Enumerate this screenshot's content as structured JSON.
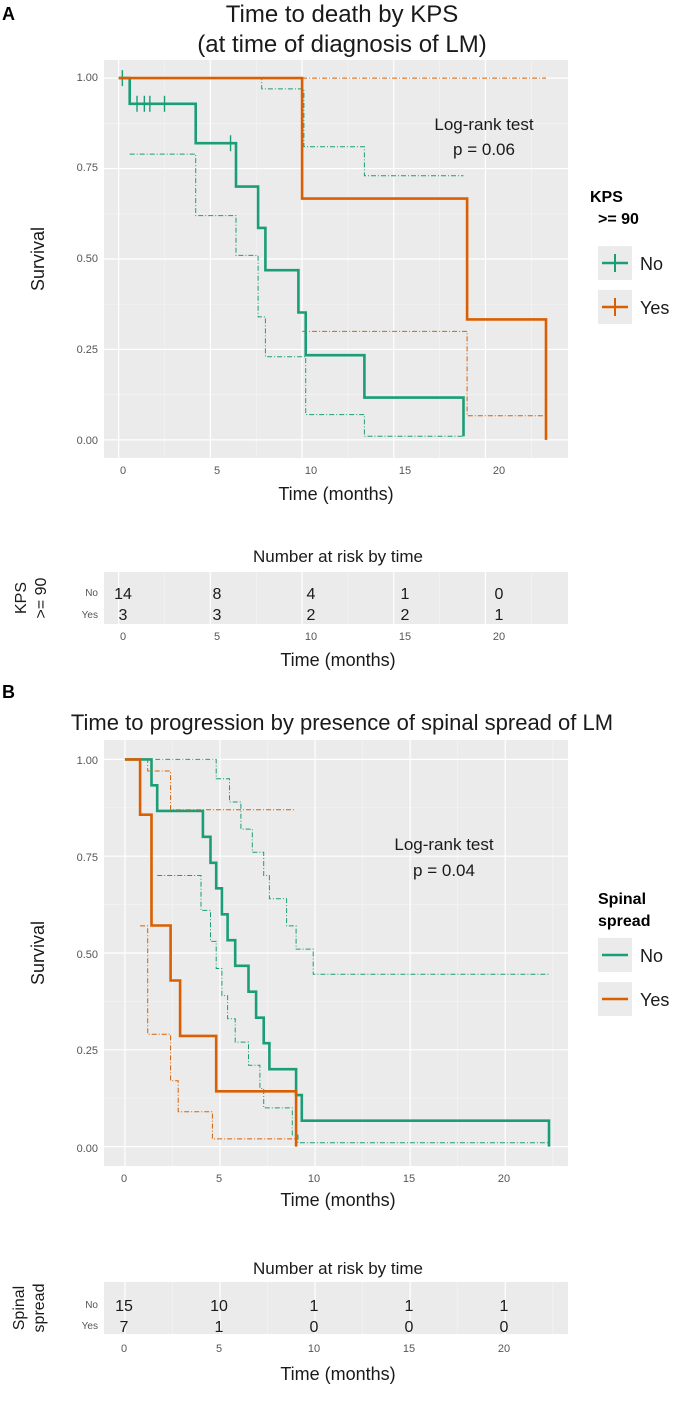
{
  "colors": {
    "no": "#1b9e77",
    "yes": "#d95f02",
    "panel_bg": "#ebebeb",
    "grid": "#ffffff"
  },
  "chart_data": [
    {
      "type": "line",
      "panel_label": "A",
      "title_lines": [
        "Time to death by KPS",
        "(at time of diagnosis of LM)"
      ],
      "xlabel": "Time (months)",
      "ylabel": "Survival",
      "xlim": [
        -0.8,
        24.5
      ],
      "ylim": [
        -0.05,
        1.05
      ],
      "xticks": [
        "0",
        "5",
        "10",
        "15",
        "20"
      ],
      "yticks": [
        "0.00",
        "0.25",
        "0.50",
        "0.75",
        "1.00"
      ],
      "annotation": [
        "Log-rank test",
        "p = 0.06"
      ],
      "legend": {
        "title_lines": [
          "KPS",
          ">= 90"
        ],
        "position": "right",
        "entries": [
          "No",
          "Yes"
        ]
      },
      "series": [
        {
          "name": "No",
          "estimate": [
            [
              0,
              1
            ],
            [
              0.6,
              1
            ],
            [
              0.6,
              0.929
            ],
            [
              4.2,
              0.929
            ],
            [
              4.2,
              0.82
            ],
            [
              6.4,
              0.82
            ],
            [
              6.4,
              0.7
            ],
            [
              7.6,
              0.7
            ],
            [
              7.6,
              0.586
            ],
            [
              8,
              0.586
            ],
            [
              8,
              0.469
            ],
            [
              9.8,
              0.469
            ],
            [
              9.8,
              0.352
            ],
            [
              10.2,
              0.352
            ],
            [
              10.2,
              0.234
            ],
            [
              13.4,
              0.234
            ],
            [
              13.4,
              0.117
            ],
            [
              18.8,
              0.117
            ],
            [
              18.8,
              0.01
            ]
          ],
          "upper": [
            [
              0,
              1
            ],
            [
              4.2,
              1
            ],
            [
              4.2,
              1
            ],
            [
              7.6,
              1
            ],
            [
              7.6,
              1
            ],
            [
              7.8,
              1
            ],
            [
              7.8,
              0.97
            ],
            [
              10.1,
              0.97
            ],
            [
              10.1,
              0.81
            ],
            [
              13.4,
              0.81
            ],
            [
              13.4,
              0.73
            ],
            [
              18.8,
              0.73
            ]
          ],
          "lower": [
            [
              0.6,
              0.79
            ],
            [
              4.2,
              0.79
            ],
            [
              4.2,
              0.62
            ],
            [
              6.4,
              0.62
            ],
            [
              6.4,
              0.51
            ],
            [
              7.6,
              0.51
            ],
            [
              7.6,
              0.34
            ],
            [
              8,
              0.34
            ],
            [
              8,
              0.23
            ],
            [
              10.2,
              0.23
            ],
            [
              10.2,
              0.07
            ],
            [
              13.4,
              0.07
            ],
            [
              13.4,
              0.01
            ],
            [
              18.8,
              0.01
            ]
          ],
          "censor_times": [
            [
              0.2,
              1
            ],
            [
              1,
              0.929
            ],
            [
              1.4,
              0.929
            ],
            [
              1.7,
              0.929
            ],
            [
              2.5,
              0.929
            ],
            [
              6.1,
              0.82
            ]
          ]
        },
        {
          "name": "Yes",
          "estimate": [
            [
              0,
              1
            ],
            [
              10,
              1
            ],
            [
              10,
              0.667
            ],
            [
              19,
              0.667
            ],
            [
              19,
              0.333
            ],
            [
              23.3,
              0.333
            ],
            [
              23.3,
              0.0
            ]
          ],
          "upper": [
            [
              10,
              1
            ],
            [
              23.3,
              1
            ]
          ],
          "lower": [
            [
              10,
              0.3
            ],
            [
              19,
              0.3
            ],
            [
              19,
              0.067
            ],
            [
              23.3,
              0.067
            ],
            [
              23.3,
              0.0
            ]
          ]
        }
      ],
      "risk_table": {
        "title": "Number at risk by time",
        "ylabel": "KPS >= 90",
        "ylabel_lines": [
          "KPS",
          ">= 90"
        ],
        "row_labels": [
          "No",
          "Yes"
        ],
        "times": [
          "0",
          "5",
          "10",
          "15",
          "20"
        ],
        "rows": [
          [
            "14",
            "8",
            "4",
            "1",
            "0"
          ],
          [
            "3",
            "3",
            "2",
            "2",
            "1"
          ]
        ],
        "xlabel": "Time (months)"
      }
    },
    {
      "type": "line",
      "panel_label": "B",
      "title_lines": [
        "Time to progression by presence of spinal spread of LM"
      ],
      "xlabel": "Time (months)",
      "ylabel": "Survival",
      "xlim": [
        -1.1,
        23.3
      ],
      "ylim": [
        -0.05,
        1.05
      ],
      "xticks": [
        "0",
        "5",
        "10",
        "15",
        "20"
      ],
      "yticks": [
        "0.00",
        "0.25",
        "0.50",
        "0.75",
        "1.00"
      ],
      "annotation": [
        "Log-rank test",
        "p = 0.04"
      ],
      "legend": {
        "title_lines": [
          "Spinal",
          "spread"
        ],
        "position": "right",
        "entries": [
          "No",
          "Yes"
        ]
      },
      "series": [
        {
          "name": "No",
          "estimate": [
            [
              0,
              1
            ],
            [
              1.4,
              1
            ],
            [
              1.4,
              0.933
            ],
            [
              1.7,
              0.933
            ],
            [
              1.7,
              0.867
            ],
            [
              4.1,
              0.867
            ],
            [
              4.1,
              0.8
            ],
            [
              4.5,
              0.8
            ],
            [
              4.5,
              0.733
            ],
            [
              4.8,
              0.733
            ],
            [
              4.8,
              0.667
            ],
            [
              5.1,
              0.667
            ],
            [
              5.1,
              0.6
            ],
            [
              5.4,
              0.6
            ],
            [
              5.4,
              0.533
            ],
            [
              5.8,
              0.533
            ],
            [
              5.8,
              0.467
            ],
            [
              6.5,
              0.467
            ],
            [
              6.5,
              0.4
            ],
            [
              6.9,
              0.4
            ],
            [
              6.9,
              0.333
            ],
            [
              7.3,
              0.333
            ],
            [
              7.3,
              0.267
            ],
            [
              7.6,
              0.267
            ],
            [
              7.6,
              0.2
            ],
            [
              9.0,
              0.2
            ],
            [
              9.0,
              0.133
            ],
            [
              9.3,
              0.133
            ],
            [
              9.3,
              0.067
            ],
            [
              22.3,
              0.067
            ],
            [
              22.3,
              0.0
            ]
          ],
          "upper": [
            [
              1.6,
              1
            ],
            [
              4.8,
              1
            ],
            [
              4.8,
              0.95
            ],
            [
              5.5,
              0.95
            ],
            [
              5.5,
              0.89
            ],
            [
              6.1,
              0.89
            ],
            [
              6.1,
              0.82
            ],
            [
              6.7,
              0.82
            ],
            [
              6.7,
              0.76
            ],
            [
              7.3,
              0.76
            ],
            [
              7.3,
              0.7
            ],
            [
              7.6,
              0.7
            ],
            [
              7.6,
              0.64
            ],
            [
              8.5,
              0.64
            ],
            [
              8.5,
              0.57
            ],
            [
              9.0,
              0.57
            ],
            [
              9.0,
              0.51
            ],
            [
              9.9,
              0.51
            ],
            [
              9.9,
              0.445
            ],
            [
              22.3,
              0.445
            ]
          ],
          "lower": [
            [
              1.7,
              0.7
            ],
            [
              4.0,
              0.7
            ],
            [
              4.0,
              0.61
            ],
            [
              4.5,
              0.61
            ],
            [
              4.5,
              0.53
            ],
            [
              4.8,
              0.53
            ],
            [
              4.8,
              0.46
            ],
            [
              5.1,
              0.46
            ],
            [
              5.1,
              0.39
            ],
            [
              5.4,
              0.39
            ],
            [
              5.4,
              0.33
            ],
            [
              5.8,
              0.33
            ],
            [
              5.8,
              0.27
            ],
            [
              6.5,
              0.27
            ],
            [
              6.5,
              0.21
            ],
            [
              7.1,
              0.21
            ],
            [
              7.1,
              0.15
            ],
            [
              7.3,
              0.15
            ],
            [
              7.3,
              0.1
            ],
            [
              8.8,
              0.1
            ],
            [
              8.8,
              0.03
            ],
            [
              9.1,
              0.03
            ],
            [
              9.1,
              0.01
            ],
            [
              22.3,
              0.01
            ]
          ]
        },
        {
          "name": "Yes",
          "estimate": [
            [
              0,
              1
            ],
            [
              0.8,
              1
            ],
            [
              0.8,
              0.857
            ],
            [
              1.4,
              0.857
            ],
            [
              1.4,
              0.571
            ],
            [
              2.4,
              0.571
            ],
            [
              2.4,
              0.429
            ],
            [
              2.9,
              0.429
            ],
            [
              2.9,
              0.286
            ],
            [
              4.8,
              0.286
            ],
            [
              4.8,
              0.143
            ],
            [
              9.0,
              0.143
            ],
            [
              9.0,
              0.0
            ]
          ],
          "upper": [
            [
              0.6,
              1
            ],
            [
              1.2,
              1
            ],
            [
              1.2,
              0.97
            ],
            [
              2.4,
              0.97
            ],
            [
              2.4,
              0.87
            ],
            [
              9.0,
              0.87
            ]
          ],
          "lower": [
            [
              0.8,
              0.57
            ],
            [
              1.2,
              0.57
            ],
            [
              1.2,
              0.29
            ],
            [
              2.4,
              0.29
            ],
            [
              2.4,
              0.17
            ],
            [
              2.8,
              0.17
            ],
            [
              2.8,
              0.09
            ],
            [
              4.6,
              0.09
            ],
            [
              4.6,
              0.02
            ],
            [
              9.0,
              0.02
            ]
          ]
        }
      ],
      "risk_table": {
        "title": "Number at risk by time",
        "ylabel": "Spinal spread",
        "ylabel_lines": [
          "Spinal",
          "spread"
        ],
        "row_labels": [
          "No",
          "Yes"
        ],
        "times": [
          "0",
          "5",
          "10",
          "15",
          "20"
        ],
        "rows": [
          [
            "15",
            "10",
            "1",
            "1",
            "1"
          ],
          [
            "7",
            "1",
            "0",
            "0",
            "0"
          ]
        ],
        "xlabel": "Time (months)"
      }
    }
  ]
}
